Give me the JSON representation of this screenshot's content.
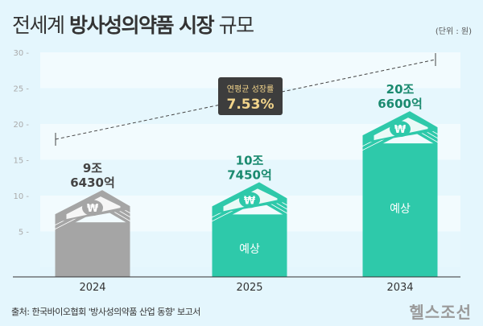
{
  "title": {
    "normal_prefix": "전세계 ",
    "bold": "방사성의약품 시장",
    "normal_suffix": " 규모"
  },
  "unit": "(단위 : 원)",
  "source": "출처: 한국바이오협회 '방사성의약품 산업 동향' 보고서",
  "logo": "헬스조선",
  "chart_data": {
    "type": "bar",
    "categories": [
      "2024",
      "2025",
      "2034"
    ],
    "values": [
      9.643,
      10.745,
      20.66
    ],
    "data_labels": [
      [
        "9조",
        "6430억"
      ],
      [
        "10조",
        "7450억"
      ],
      [
        "20조",
        "6600억"
      ]
    ],
    "bar_notes": [
      "",
      "예상",
      "예상"
    ],
    "bar_colors": [
      "#a5a5a5",
      "#2ec9aa",
      "#2ec9aa"
    ],
    "label_colors": [
      "#444444",
      "#1a8a6f",
      "#1a8a6f"
    ],
    "yticks": [
      5,
      10,
      15,
      20,
      25,
      30
    ],
    "ylim": [
      0,
      30
    ],
    "trend": {
      "label": "연평균 성장률",
      "value": "7.53%"
    },
    "grid": "horizontal bands"
  }
}
